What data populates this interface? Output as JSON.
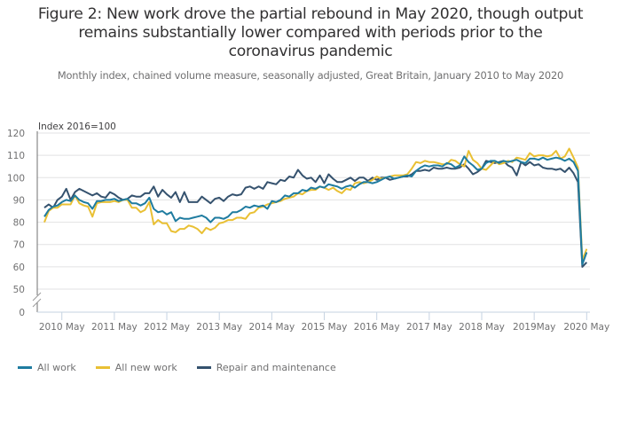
{
  "title": "Figure 2: New work drove the partial rebound in May 2020, though output remains substantially lower compared with periods prior to the coronavirus pandemic",
  "title_lines": [
    "Figure 2: New work drove the partial rebound in May 2020, though output",
    "remains substantially lower compared with periods prior to the",
    "coronavirus pandemic"
  ],
  "subtitle": "Monthly index, chained volume measure, seasonally adjusted, Great Britain, January 2010 to May 2020",
  "chart_data": {
    "type": "line",
    "title": "Figure 2: New work drove the partial rebound in May 2020, though output remains substantially lower compared with periods prior to the coronavirus pandemic",
    "ylabel": "Index 2016=100",
    "xlabel": "",
    "x_start": "2010-01",
    "x_end": "2020-05",
    "frequency": "monthly",
    "ylim": [
      0,
      120
    ],
    "y_axis_break": [
      0,
      50
    ],
    "y_ticks": [
      0,
      50,
      60,
      70,
      80,
      90,
      100,
      110,
      120
    ],
    "x_tick_labels": [
      "2010 May",
      "2011 May",
      "2012 May",
      "2013 May",
      "2014 May",
      "2015 May",
      "2016 May",
      "2017 May",
      "2018 May",
      "2019May",
      "2020 May"
    ],
    "grid": true,
    "legend_position": "bottom-left",
    "series": [
      {
        "name": "All work",
        "color": "#1f7ca0",
        "values": [
          82.5,
          85.5,
          87,
          87.5,
          89,
          90,
          89.5,
          92,
          90,
          89,
          88.5,
          86,
          89.5,
          89.5,
          90,
          90,
          90.5,
          89.5,
          90,
          90.5,
          88.5,
          88.5,
          87.5,
          88.5,
          91,
          86,
          84.5,
          85,
          83.5,
          84.5,
          80.5,
          82,
          81.5,
          81.5,
          82,
          82.5,
          83,
          82,
          80,
          82,
          82,
          81.5,
          82.5,
          84.5,
          84.5,
          85.5,
          87,
          86.5,
          87.5,
          87,
          87.5,
          86,
          89.5,
          89,
          90,
          92,
          91.5,
          93,
          93,
          94.5,
          94,
          95.5,
          95,
          96,
          95.5,
          97,
          96.5,
          96,
          95,
          96,
          96.5,
          95.5,
          97,
          98,
          98,
          97.5,
          98,
          99,
          100,
          100.5,
          99.5,
          100,
          100.5,
          101,
          100.5,
          103,
          104.5,
          105.5,
          105,
          105.5,
          105.5,
          105,
          106.5,
          106,
          104.5,
          105.5,
          109.5,
          107,
          105.5,
          103.5,
          104,
          106.5,
          107.5,
          107.5,
          106.5,
          107.5,
          107,
          107.5,
          108,
          107,
          106.5,
          108.5,
          108.5,
          108,
          109,
          108,
          108.5,
          109,
          108.5,
          107.5,
          108.5,
          107,
          103,
          61,
          66.5
        ]
      },
      {
        "name": "All new work",
        "color": "#e9c034",
        "values": [
          80,
          85,
          86.5,
          86.5,
          88,
          88,
          88,
          92,
          88.5,
          87.5,
          87,
          82.5,
          88.5,
          89,
          89,
          89,
          89.5,
          89,
          90,
          90,
          86.5,
          86.5,
          84.5,
          85.5,
          89,
          79,
          81,
          79.5,
          79.5,
          76,
          75.5,
          77,
          77,
          78.5,
          78,
          77,
          75,
          77.5,
          76.5,
          77.5,
          79.5,
          80,
          81,
          81,
          82,
          82,
          81.5,
          84,
          84.5,
          86.5,
          87,
          88,
          88.5,
          89,
          89.5,
          90.5,
          91,
          91.5,
          93,
          92.5,
          94,
          94.5,
          94.5,
          96,
          95.5,
          94.5,
          95.5,
          94,
          93,
          95,
          94.5,
          97.5,
          98,
          97.5,
          98,
          99,
          100.5,
          99.5,
          100,
          100.5,
          101,
          101,
          101,
          101.5,
          104,
          107,
          106.5,
          107.5,
          107,
          107,
          106.5,
          106,
          106,
          108,
          107.5,
          106,
          105,
          112,
          108,
          106.5,
          104,
          103.5,
          105.5,
          107.5,
          106,
          106.5,
          107.5,
          107,
          109,
          108.5,
          108,
          111,
          109.5,
          110,
          110,
          109.5,
          110,
          112,
          108.5,
          109.5,
          113,
          109,
          104.5,
          63,
          68
        ]
      },
      {
        "name": "Repair and maintenance",
        "color": "#35526e",
        "values": [
          86.5,
          88,
          86.5,
          90,
          91.5,
          95,
          90,
          93.5,
          95,
          94,
          93,
          92,
          93,
          91.5,
          91,
          93.5,
          92.5,
          91,
          90,
          90.5,
          92,
          91.5,
          91.5,
          93,
          93,
          96,
          91.5,
          94.5,
          92.5,
          91,
          93.5,
          89,
          93.5,
          89,
          89,
          89,
          91.5,
          90,
          88.5,
          90.5,
          91,
          89.5,
          91.5,
          92.5,
          92,
          92.5,
          95.5,
          96,
          95,
          96,
          95,
          98,
          97.5,
          97,
          99,
          98.5,
          100.5,
          100,
          103.5,
          101,
          99.5,
          100,
          98,
          101,
          97.5,
          101.5,
          99.5,
          98,
          98,
          99,
          100,
          98.5,
          100,
          100,
          98.5,
          100,
          99,
          100,
          100,
          99,
          99.5,
          100,
          100.5,
          100.5,
          101.5,
          103,
          103,
          103.5,
          103,
          104.5,
          104,
          104,
          104.5,
          104,
          104,
          104.5,
          106,
          104,
          101.5,
          102.5,
          104,
          107.5,
          107,
          106.5,
          107,
          107.5,
          105.5,
          104.5,
          101,
          107,
          105.5,
          107,
          105.5,
          106,
          104.5,
          104,
          104,
          103.5,
          104,
          102.5,
          104.5,
          102,
          98,
          60,
          62
        ]
      }
    ]
  },
  "legend": [
    {
      "label": "All work",
      "color": "#1f7ca0"
    },
    {
      "label": "All new work",
      "color": "#e9c034"
    },
    {
      "label": "Repair and maintenance",
      "color": "#35526e"
    }
  ]
}
